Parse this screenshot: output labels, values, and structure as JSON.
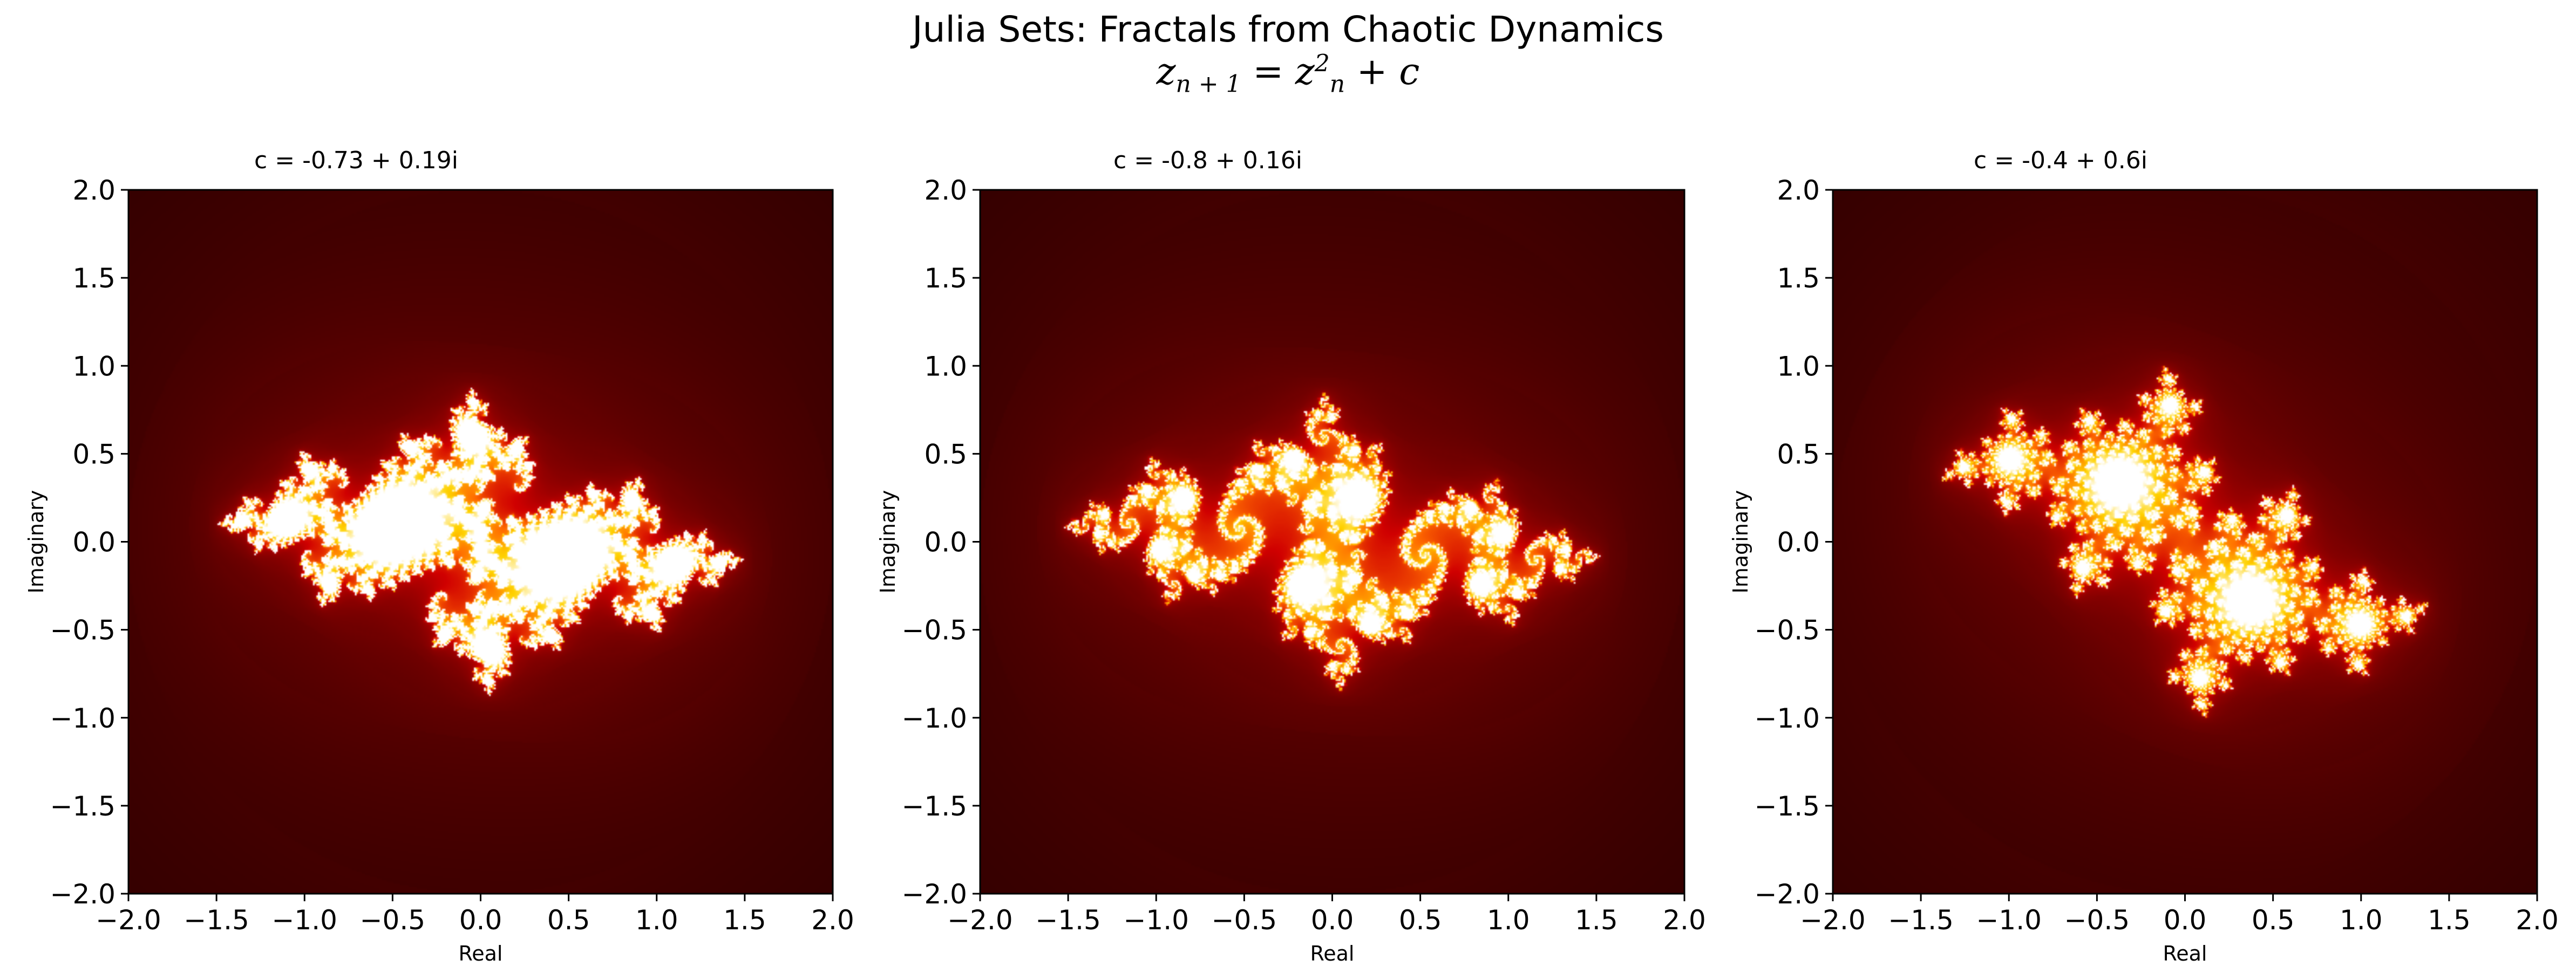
{
  "figure": {
    "suptitle": "Julia Sets: Fractals from Chaotic Dynamics",
    "equation": {
      "lhs_var": "z",
      "lhs_sub": "n + 1",
      "eq": " = ",
      "rhs_var": "z",
      "rhs_sub": "n",
      "rhs_sup": "2",
      "plus": " + ",
      "const": "c"
    }
  },
  "colors": {
    "background": "#ffffff",
    "colormap": "hot",
    "colormap_stops": [
      "#0a0000",
      "#6e0000",
      "#d00000",
      "#ff6a00",
      "#ffd200",
      "#ffffff"
    ]
  },
  "chart_data": [
    {
      "type": "heatmap",
      "title": "c = -0.73 + 0.19i",
      "c_real": -0.73,
      "c_imag": 0.19,
      "xlabel": "Real",
      "ylabel": "Imaginary",
      "xlim": [
        -2.0,
        2.0
      ],
      "ylim": [
        -2.0,
        2.0
      ],
      "xticks": [
        "−2.0",
        "−1.5",
        "−1.0",
        "−0.5",
        "0.0",
        "0.5",
        "1.0",
        "1.5",
        "2.0"
      ],
      "yticks": [
        "2.0",
        "1.5",
        "1.0",
        "0.5",
        "0.0",
        "−0.5",
        "−1.0",
        "−1.5",
        "−2.0"
      ],
      "grid": false
    },
    {
      "type": "heatmap",
      "title": "c = -0.8 + 0.16i",
      "c_real": -0.8,
      "c_imag": 0.16,
      "xlabel": "Real",
      "ylabel": "Imaginary",
      "xlim": [
        -2.0,
        2.0
      ],
      "ylim": [
        -2.0,
        2.0
      ],
      "xticks": [
        "−2.0",
        "−1.5",
        "−1.0",
        "−0.5",
        "0.0",
        "0.5",
        "1.0",
        "1.5",
        "2.0"
      ],
      "yticks": [
        "2.0",
        "1.5",
        "1.0",
        "0.5",
        "0.0",
        "−0.5",
        "−1.0",
        "−1.5",
        "−2.0"
      ],
      "grid": false
    },
    {
      "type": "heatmap",
      "title": "c = -0.4 + 0.6i",
      "c_real": -0.4,
      "c_imag": 0.6,
      "xlabel": "Real",
      "ylabel": "Imaginary",
      "xlim": [
        -2.0,
        2.0
      ],
      "ylim": [
        -2.0,
        2.0
      ],
      "xticks": [
        "−2.0",
        "−1.5",
        "−1.0",
        "−0.5",
        "0.0",
        "0.5",
        "1.0",
        "1.5",
        "2.0"
      ],
      "yticks": [
        "2.0",
        "1.5",
        "1.0",
        "0.5",
        "0.0",
        "−0.5",
        "−1.0",
        "−1.5",
        "−2.0"
      ],
      "grid": false
    }
  ]
}
